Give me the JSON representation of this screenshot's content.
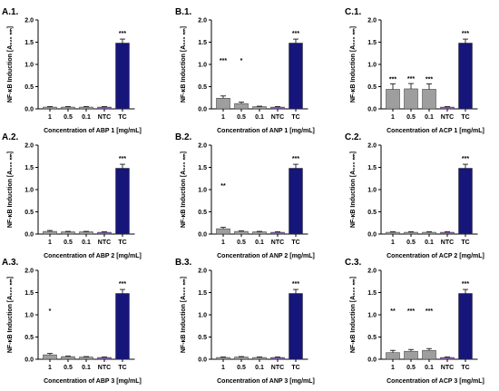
{
  "y_axis_label": "NF-κB Induction [A₆₂₀ ₙₘ]",
  "colors": {
    "sample": "#9e9e9e",
    "ntc": "#8b5fb7",
    "tc": "#15157a",
    "axis": "#000000"
  },
  "chart_data": [
    {
      "type": "bar",
      "panel": "A.1.",
      "title": "",
      "xlabel": "Concentration of ABP 1 [mg/mL]",
      "ylabel": "NF-κB Induction [A620 nm]",
      "categories": [
        "1",
        "0.5",
        "0.1",
        "NTC",
        "TC"
      ],
      "values": [
        0.04,
        0.04,
        0.04,
        0.04,
        1.48
      ],
      "errors": [
        0.01,
        0.01,
        0.01,
        0.01,
        0.09
      ],
      "significance": [
        "",
        "",
        "",
        "",
        "***"
      ],
      "ylim": [
        0,
        2.0
      ],
      "yticks": [
        "0.0",
        "0.5",
        "1.0",
        "1.5",
        "2.0"
      ]
    },
    {
      "type": "bar",
      "panel": "B.1.",
      "title": "",
      "xlabel": "Concentration of ANP 1 [mg/mL]",
      "ylabel": "NF-κB Induction [A620 nm]",
      "categories": [
        "1",
        "0.5",
        "0.1",
        "NTC",
        "TC"
      ],
      "values": [
        0.24,
        0.12,
        0.05,
        0.04,
        1.48
      ],
      "errors": [
        0.05,
        0.03,
        0.01,
        0.01,
        0.09
      ],
      "significance": [
        "***",
        "*",
        "",
        "",
        "***"
      ],
      "ylim": [
        0,
        2.0
      ],
      "yticks": [
        "0.0",
        "0.5",
        "1.0",
        "1.5",
        "2.0"
      ]
    },
    {
      "type": "bar",
      "panel": "C.1.",
      "title": "",
      "xlabel": "Concentration of ACP 1 [mg/mL]",
      "ylabel": "NF-κB Induction [A620 nm]",
      "categories": [
        "1",
        "0.5",
        "0.1",
        "NTC",
        "TC"
      ],
      "values": [
        0.44,
        0.45,
        0.44,
        0.04,
        1.48
      ],
      "errors": [
        0.12,
        0.12,
        0.12,
        0.01,
        0.09
      ],
      "significance": [
        "***",
        "***",
        "***",
        "",
        "***"
      ],
      "ylim": [
        0,
        2.0
      ],
      "yticks": [
        "0.0",
        "0.5",
        "1.0",
        "1.5",
        "2.0"
      ]
    },
    {
      "type": "bar",
      "panel": "A.2.",
      "title": "",
      "xlabel": "Concentration of ABP 2 [mg/mL]",
      "ylabel": "NF-κB Induction [A620 nm]",
      "categories": [
        "1",
        "0.5",
        "0.1",
        "NTC",
        "TC"
      ],
      "values": [
        0.06,
        0.05,
        0.05,
        0.04,
        1.48
      ],
      "errors": [
        0.02,
        0.01,
        0.01,
        0.01,
        0.09
      ],
      "significance": [
        "",
        "",
        "",
        "",
        "***"
      ],
      "ylim": [
        0,
        2.0
      ],
      "yticks": [
        "0.0",
        "0.5",
        "1.0",
        "1.5",
        "2.0"
      ]
    },
    {
      "type": "bar",
      "panel": "B.2.",
      "title": "",
      "xlabel": "Concentration of ANP 2 [mg/mL]",
      "ylabel": "NF-κB Induction [A620 nm]",
      "categories": [
        "1",
        "0.5",
        "0.1",
        "NTC",
        "TC"
      ],
      "values": [
        0.12,
        0.06,
        0.05,
        0.04,
        1.48
      ],
      "errors": [
        0.03,
        0.01,
        0.01,
        0.01,
        0.09
      ],
      "significance": [
        "**",
        "",
        "",
        "",
        "***"
      ],
      "ylim": [
        0,
        2.0
      ],
      "yticks": [
        "0.0",
        "0.5",
        "1.0",
        "1.5",
        "2.0"
      ]
    },
    {
      "type": "bar",
      "panel": "C.2.",
      "title": "",
      "xlabel": "Concentration of ACP 2 [mg/mL]",
      "ylabel": "NF-κB Induction [A620 nm]",
      "categories": [
        "1",
        "0.5",
        "0.1",
        "NTC",
        "TC"
      ],
      "values": [
        0.04,
        0.04,
        0.04,
        0.04,
        1.48
      ],
      "errors": [
        0.01,
        0.01,
        0.01,
        0.01,
        0.09
      ],
      "significance": [
        "",
        "",
        "",
        "",
        "***"
      ],
      "ylim": [
        0,
        2.0
      ],
      "yticks": [
        "0.0",
        "0.5",
        "1.0",
        "1.5",
        "2.0"
      ]
    },
    {
      "type": "bar",
      "panel": "A.3.",
      "title": "",
      "xlabel": "Concentration of ABP 3 [mg/mL]",
      "ylabel": "NF-κB Induction [A620 nm]",
      "categories": [
        "1",
        "0.5",
        "0.1",
        "NTC",
        "TC"
      ],
      "values": [
        0.1,
        0.06,
        0.05,
        0.04,
        1.48
      ],
      "errors": [
        0.03,
        0.01,
        0.01,
        0.01,
        0.09
      ],
      "significance": [
        "*",
        "",
        "",
        "",
        "***"
      ],
      "ylim": [
        0,
        2.0
      ],
      "yticks": [
        "0.0",
        "0.5",
        "1.0",
        "1.5",
        "2.0"
      ]
    },
    {
      "type": "bar",
      "panel": "B.3.",
      "title": "",
      "xlabel": "Concentration of ANP 3 [mg/mL]",
      "ylabel": "NF-κB Induction [A620 nm]",
      "categories": [
        "1",
        "0.5",
        "0.1",
        "NTC",
        "TC"
      ],
      "values": [
        0.04,
        0.05,
        0.04,
        0.04,
        1.48
      ],
      "errors": [
        0.01,
        0.01,
        0.01,
        0.01,
        0.09
      ],
      "significance": [
        "",
        "",
        "",
        "",
        "***"
      ],
      "ylim": [
        0,
        2.0
      ],
      "yticks": [
        "0.0",
        "0.5",
        "1.0",
        "1.5",
        "2.0"
      ]
    },
    {
      "type": "bar",
      "panel": "C.3.",
      "title": "",
      "xlabel": "Concentration of ACP 3 [mg/mL]",
      "ylabel": "NF-κB Induction [A620 nm]",
      "categories": [
        "1",
        "0.5",
        "0.1",
        "NTC",
        "TC"
      ],
      "values": [
        0.15,
        0.18,
        0.2,
        0.04,
        1.48
      ],
      "errors": [
        0.05,
        0.04,
        0.04,
        0.01,
        0.09
      ],
      "significance": [
        "**",
        "***",
        "***",
        "",
        "***"
      ],
      "ylim": [
        0,
        2.0
      ],
      "yticks": [
        "0.0",
        "0.5",
        "1.0",
        "1.5",
        "2.0"
      ]
    }
  ]
}
